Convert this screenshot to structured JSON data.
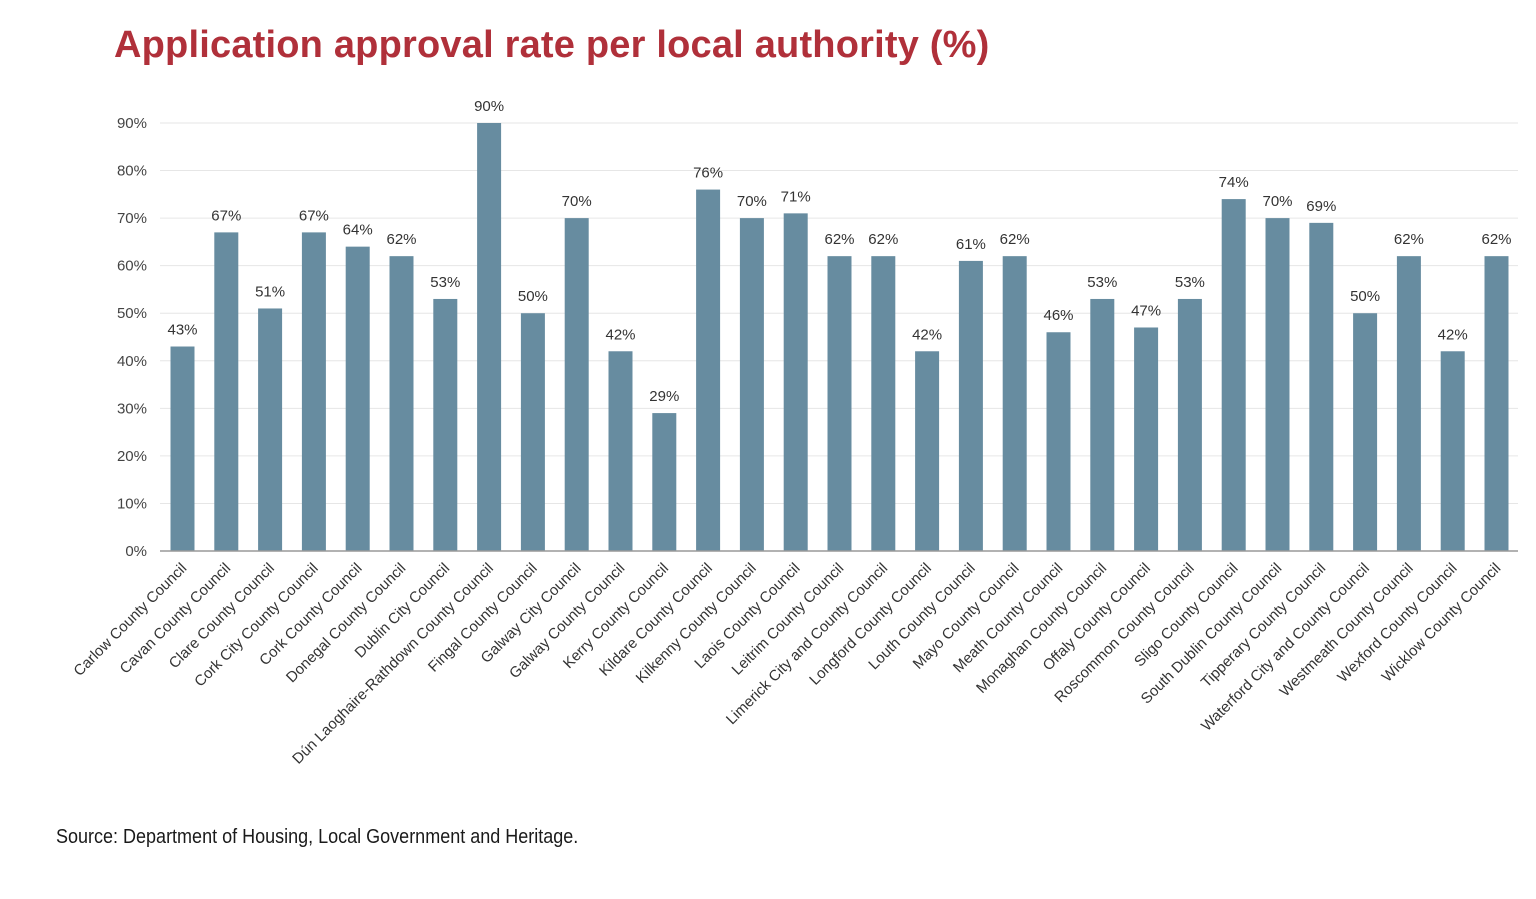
{
  "chart_data": {
    "type": "bar",
    "title": "Application approval rate per local authority (%)",
    "xlabel": "",
    "ylabel": "",
    "ylim": [
      0,
      90
    ],
    "yticks": [
      0,
      10,
      20,
      30,
      40,
      50,
      60,
      70,
      80,
      90
    ],
    "ytick_suffix": "%",
    "grid": true,
    "bar_color": "#678ca0",
    "categories": [
      "Carlow County Council",
      "Cavan County Council",
      "Clare County Council",
      "Cork City County Council",
      "Cork County Council",
      "Donegal County Council",
      "Dublin City Council",
      "Dún Laoghaire-Rathdown County Council",
      "Fingal County Council",
      "Galway City Council",
      "Galway County Council",
      "Kerry County Council",
      "Kildare County Council",
      "Kilkenny County Council",
      "Laois County Council",
      "Leitrim County Council",
      "Limerick City and County Council",
      "Longford County Council",
      "Louth County Council",
      "Mayo County Council",
      "Meath County Council",
      "Monaghan County Council",
      "Offaly County Council",
      "Roscommon County Council",
      "Sligo County Council",
      "South Dublin County Council",
      "Tipperary County Council",
      "Waterford City and County Council",
      "Westmeath County Council",
      "Wexford County Council",
      "Wicklow County Council"
    ],
    "values": [
      43,
      67,
      51,
      67,
      64,
      62,
      53,
      90,
      50,
      70,
      42,
      29,
      76,
      70,
      71,
      62,
      62,
      42,
      61,
      62,
      46,
      53,
      47,
      53,
      74,
      70,
      69,
      50,
      62,
      42,
      62
    ],
    "value_labels": [
      "43%",
      "67%",
      "51%",
      "67%",
      "64%",
      "62%",
      "53%",
      "90%",
      "50%",
      "70%",
      "42%",
      "29%",
      "76%",
      "70%",
      "71%",
      "62%",
      "62%",
      "42%",
      "61%",
      "62%",
      "46%",
      "53%",
      "47%",
      "53%",
      "74%",
      "70%",
      "69%",
      "50%",
      "62%",
      "42%",
      "62%"
    ]
  },
  "source": "Source: Department of Housing, Local Government and Heritage.",
  "colors": {
    "title": "#b0303a",
    "bar": "#678ca0",
    "grid": "#e6e6e6",
    "axis": "#999999"
  }
}
